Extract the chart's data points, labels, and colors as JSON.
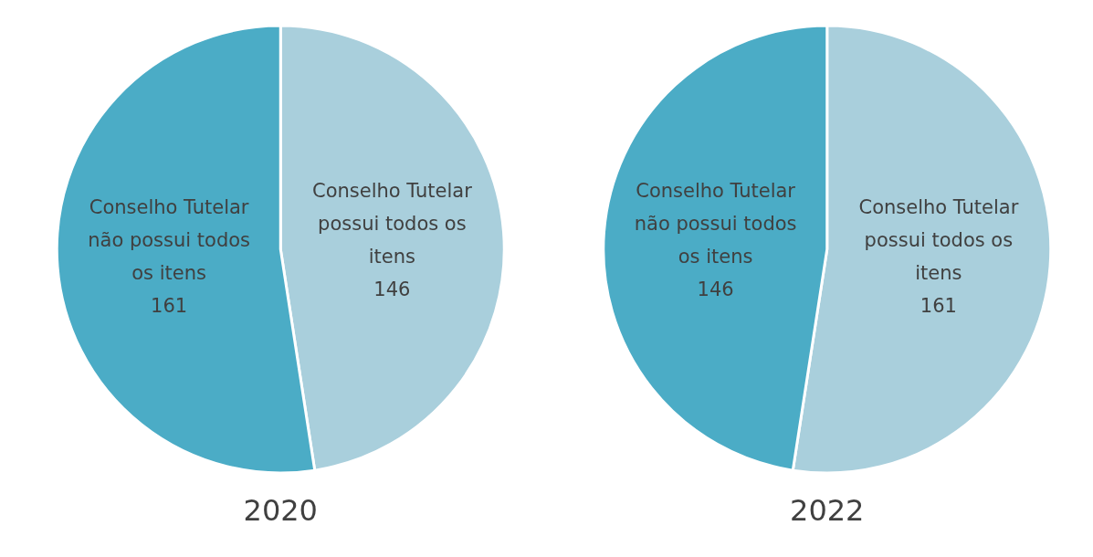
{
  "chart_data": [
    {
      "type": "pie",
      "title": "2020",
      "categories": [
        "Conselho Tutelar possui todos os itens",
        "Conselho Tutelar não possui todos os itens"
      ],
      "values": [
        146,
        161
      ],
      "colors": [
        "#a9cfdc",
        "#4bacc6"
      ],
      "data_labels": true
    },
    {
      "type": "pie",
      "title": "2022",
      "categories": [
        "Conselho Tutelar possui todos os itens",
        "Conselho Tutelar não possui todos os itens"
      ],
      "values": [
        161,
        146
      ],
      "colors": [
        "#a9cfdc",
        "#4bacc6"
      ],
      "data_labels": true
    }
  ]
}
